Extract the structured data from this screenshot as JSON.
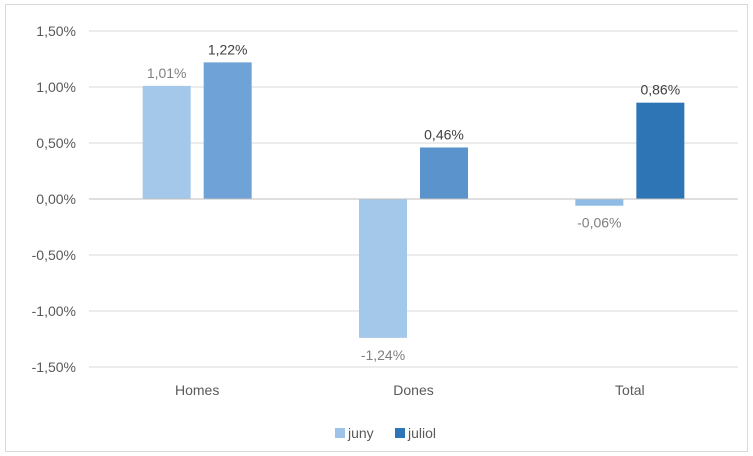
{
  "chart_data": {
    "type": "bar",
    "categories": [
      "Homes",
      "Dones",
      "Total"
    ],
    "series": [
      {
        "name": "juny",
        "values": [
          1.01,
          -1.24,
          -0.06
        ],
        "labels": [
          "1,01%",
          "-1,24%",
          "-0,06%"
        ],
        "color": "#9dc3e6",
        "label_color": "#7f7f7f",
        "label_bold": false
      },
      {
        "name": "juliol",
        "values": [
          1.22,
          0.46,
          0.86
        ],
        "labels": [
          "1,22%",
          "0,46%",
          "0,86%"
        ],
        "color": "#2e75b6",
        "label_color": "#404040",
        "label_bold": false
      }
    ],
    "bar_colors": [
      [
        "#a4c8ea",
        "#6fa3d8"
      ],
      [
        "#a4c8ea",
        "#5b93cc"
      ],
      [
        "#8fbbe4",
        "#2e75b6"
      ]
    ],
    "ylim": [
      -1.5,
      1.5
    ],
    "yticks": [
      1.5,
      1.0,
      0.5,
      0.0,
      -0.5,
      -1.0,
      -1.5
    ],
    "ytick_labels": [
      "1,50%",
      "1,00%",
      "0,50%",
      "0,00%",
      "-0,50%",
      "-1,00%",
      "-1,50%"
    ],
    "grid": true,
    "legend_position": "bottom",
    "title": "",
    "xlabel": "",
    "ylabel": ""
  }
}
